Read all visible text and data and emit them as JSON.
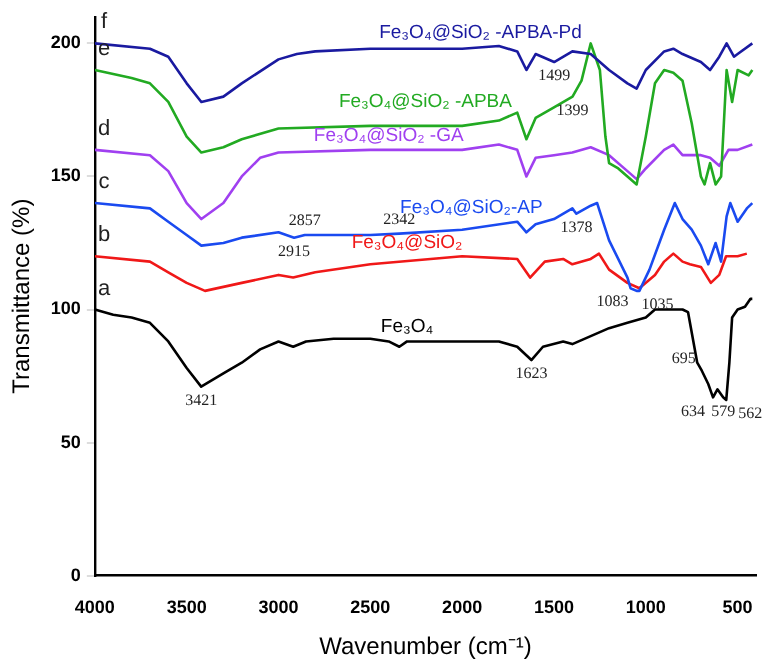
{
  "chart_data": {
    "type": "line",
    "xlabel": "Wavenumber (cm⁻¹)",
    "ylabel": "Transmittance (%)",
    "xlim": [
      4000,
      400
    ],
    "xticks": [
      4000,
      3500,
      3000,
      2500,
      2000,
      1500,
      1000,
      500
    ],
    "ylim": [
      0,
      210
    ],
    "yticks": [
      0,
      50,
      100,
      150,
      200
    ],
    "grid": false,
    "legend": false,
    "marker": "none",
    "line_style": "solid",
    "series": [
      {
        "name": "Fe₃O₄@SiO₂ -APBA-Pd",
        "color": "#1a1aa0",
        "x": [
          4000,
          3700,
          3600,
          3500,
          3420,
          3300,
          3200,
          3000,
          2900,
          2800,
          2500,
          2000,
          1800,
          1700,
          1650,
          1600,
          1499,
          1400,
          1300,
          1200,
          1100,
          1050,
          1000,
          900,
          850,
          800,
          700,
          650,
          600,
          560,
          520,
          500,
          420
        ],
        "values": [
          200,
          198,
          195,
          185,
          178,
          180,
          185,
          194,
          196,
          197,
          198,
          198,
          199,
          197,
          190,
          196,
          193,
          197,
          196,
          190,
          185,
          183,
          190,
          197,
          198,
          196,
          193,
          190,
          195,
          200,
          195,
          196,
          200
        ]
      },
      {
        "name": "Fe₃O₄@SiO₂ -APBA",
        "color": "#22aa22",
        "x": [
          4000,
          3800,
          3700,
          3600,
          3500,
          3420,
          3300,
          3200,
          3000,
          2500,
          2000,
          1800,
          1700,
          1650,
          1600,
          1500,
          1399,
          1350,
          1300,
          1250,
          1220,
          1200,
          1150,
          1100,
          1050,
          1000,
          950,
          900,
          850,
          800,
          750,
          700,
          680,
          650,
          620,
          590,
          560,
          530,
          500,
          440,
          420
        ],
        "values": [
          190,
          187,
          185,
          178,
          165,
          159,
          161,
          164,
          168,
          169,
          169,
          171,
          174,
          164,
          172,
          176,
          180,
          186,
          200,
          190,
          165,
          155,
          153,
          150,
          147,
          165,
          185,
          190,
          189,
          186,
          170,
          150,
          147,
          155,
          147,
          150,
          190,
          178,
          190,
          188,
          190
        ]
      },
      {
        "name": "Fe₃O₄@SiO₂ -GA",
        "color": "#a040f0",
        "x": [
          4000,
          3700,
          3600,
          3500,
          3420,
          3300,
          3200,
          3100,
          3000,
          2500,
          2000,
          1800,
          1700,
          1650,
          1600,
          1500,
          1400,
          1300,
          1200,
          1100,
          1050,
          1000,
          900,
          850,
          800,
          700,
          650,
          600,
          550,
          500,
          420
        ],
        "values": [
          160,
          158,
          152,
          140,
          134,
          140,
          150,
          157,
          159,
          160,
          160,
          162,
          160,
          150,
          157,
          158,
          159,
          161,
          158,
          152,
          149,
          153,
          160,
          162,
          158,
          158,
          157,
          154,
          160,
          160,
          162
        ]
      },
      {
        "name": "Fe₃O₄@SiO₂-AP",
        "color": "#1a4af0",
        "x": [
          4000,
          3700,
          3600,
          3500,
          3420,
          3300,
          3200,
          3000,
          2915,
          2857,
          2500,
          2342,
          2000,
          1700,
          1650,
          1600,
          1500,
          1400,
          1378,
          1300,
          1265,
          1200,
          1100,
          1083,
          1050,
          1035,
          980,
          900,
          842,
          800,
          750,
          700,
          660,
          620,
          590,
          560,
          540,
          500,
          450,
          420
        ],
        "values": [
          140,
          138,
          133,
          128,
          124,
          125,
          127,
          129,
          127,
          128,
          128,
          128.5,
          130,
          133,
          129,
          132,
          134,
          138,
          136,
          139,
          140,
          126,
          112,
          108,
          107,
          107,
          115,
          130,
          140,
          134,
          130,
          124,
          117,
          125,
          118,
          135,
          140,
          133,
          138,
          140
        ]
      },
      {
        "name": "Fe₃O₄@SiO₂",
        "color": "#f01818",
        "x": [
          4000,
          3700,
          3600,
          3500,
          3400,
          3200,
          3000,
          2920,
          2800,
          2500,
          2000,
          1700,
          1630,
          1550,
          1450,
          1400,
          1300,
          1255,
          1200,
          1100,
          1035,
          950,
          900,
          850,
          800,
          760,
          700,
          646,
          600,
          563,
          500,
          450
        ],
        "values": [
          120,
          118,
          114,
          110,
          107,
          110,
          113,
          112,
          114,
          117,
          120,
          119,
          112,
          118,
          119,
          117,
          119,
          121,
          115,
          110,
          108,
          113,
          118,
          121,
          118,
          117,
          116,
          110,
          113,
          120,
          120,
          121
        ]
      },
      {
        "name": "Fe₃O₄",
        "color": "#000000",
        "x": [
          4000,
          3900,
          3800,
          3700,
          3600,
          3500,
          3421,
          3300,
          3200,
          3100,
          3000,
          2920,
          2850,
          2700,
          2500,
          2400,
          2342,
          2300,
          2000,
          1800,
          1700,
          1623,
          1560,
          1450,
          1400,
          1300,
          1200,
          1100,
          1000,
          950,
          800,
          770,
          720,
          695,
          660,
          634,
          610,
          579,
          562,
          545,
          530,
          500,
          460,
          430,
          420
        ],
        "values": [
          100,
          98,
          97,
          95,
          88,
          78,
          71,
          76,
          80,
          85,
          88,
          86,
          88,
          89,
          89,
          88,
          86,
          88,
          88,
          88,
          86,
          81,
          86,
          88,
          87,
          90,
          93,
          95,
          97,
          100,
          100,
          99,
          80,
          77,
          72,
          67,
          70,
          67,
          66,
          80,
          97,
          100,
          101,
          104,
          104
        ]
      }
    ],
    "annotations": [
      {
        "text": "f",
        "x": 3950,
        "y": 203
      },
      {
        "text": "e",
        "x": 3950,
        "y": 193
      },
      {
        "text": "d",
        "x": 3950,
        "y": 163
      },
      {
        "text": "c",
        "x": 3950,
        "y": 143
      },
      {
        "text": "b",
        "x": 3950,
        "y": 123
      },
      {
        "text": "a",
        "x": 3950,
        "y": 103
      },
      {
        "text": "3421",
        "x": 3421,
        "y": 71
      },
      {
        "text": "1623",
        "x": 1623,
        "y": 81
      },
      {
        "text": "695",
        "x": 695,
        "y": 77
      },
      {
        "text": "634",
        "x": 634,
        "y": 67
      },
      {
        "text": "579",
        "x": 579,
        "y": 67
      },
      {
        "text": "562",
        "x": 562,
        "y": 66
      },
      {
        "text": "2915",
        "x": 2915,
        "y": 127
      },
      {
        "text": "2857",
        "x": 2857,
        "y": 128
      },
      {
        "text": "2342",
        "x": 2342,
        "y": 128.5
      },
      {
        "text": "1378",
        "x": 1378,
        "y": 136
      },
      {
        "text": "1083",
        "x": 1083,
        "y": 108
      },
      {
        "text": "1035",
        "x": 1035,
        "y": 107
      },
      {
        "text": "1399",
        "x": 1399,
        "y": 180
      },
      {
        "text": "1499",
        "x": 1499,
        "y": 193
      }
    ]
  }
}
